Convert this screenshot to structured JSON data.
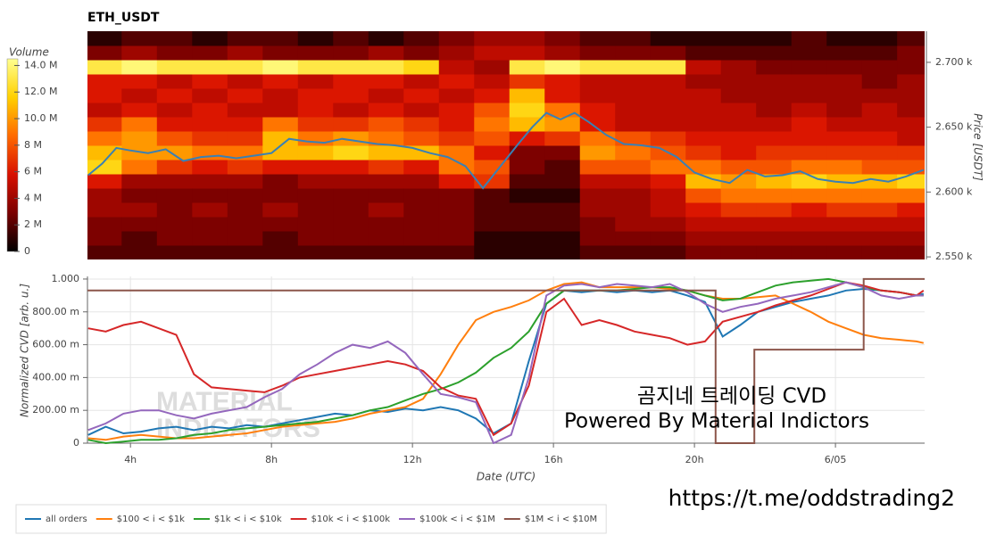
{
  "chart_data": [
    {
      "type": "heatmap",
      "title": "ETH_USDT",
      "ylabel": "Price [USDT]",
      "xlim": [
        2.78,
        26.53
      ],
      "ylim": [
        2548,
        2724
      ],
      "yticks": [
        {
          "value": 2550,
          "label": "2.550 k"
        },
        {
          "value": 2600,
          "label": "2.600 k"
        },
        {
          "value": 2650,
          "label": "2.650 k"
        },
        {
          "value": 2700,
          "label": "2.700 k"
        }
      ],
      "x_bins": [
        2.75,
        3.75,
        4.75,
        5.75,
        6.75,
        7.75,
        8.75,
        9.75,
        10.75,
        11.75,
        12.75,
        13.75,
        14.75,
        15.75,
        16.75,
        17.75,
        18.75,
        19.75,
        20.75,
        21.75,
        22.75,
        23.75,
        24.75,
        25.75,
        26.75
      ],
      "y_bins": [
        2548,
        2559,
        2570,
        2581,
        2592,
        2603,
        2614,
        2625,
        2636,
        2647,
        2658,
        2669,
        2680,
        2691,
        2702,
        2713,
        2724
      ],
      "z": [
        [
          2,
          2,
          2,
          2,
          2,
          2,
          2,
          2,
          2,
          2,
          2,
          1,
          1,
          1,
          2,
          2,
          2,
          3,
          3,
          3,
          3,
          3,
          3,
          3
        ],
        [
          3,
          2,
          3,
          3,
          3,
          2,
          3,
          3,
          3,
          3,
          3,
          1,
          1,
          1,
          3,
          3,
          3,
          4,
          4,
          4,
          4,
          4,
          4,
          4
        ],
        [
          3,
          3,
          3,
          3,
          3,
          3,
          3,
          3,
          3,
          3,
          3,
          2,
          2,
          2,
          3,
          4,
          4,
          5,
          5,
          5,
          5,
          5,
          5,
          5
        ],
        [
          4,
          4,
          3,
          4,
          3,
          4,
          3,
          3,
          4,
          3,
          3,
          2,
          2,
          2,
          4,
          4,
          5,
          6,
          7,
          7,
          6,
          7,
          7,
          6
        ],
        [
          4,
          3,
          3,
          3,
          3,
          3,
          3,
          3,
          3,
          3,
          3,
          2,
          1,
          1,
          4,
          4,
          5,
          8,
          9,
          9,
          9,
          9,
          9,
          9
        ],
        [
          6,
          4,
          4,
          4,
          4,
          3,
          4,
          4,
          4,
          4,
          6,
          7,
          2,
          2,
          5,
          5,
          6,
          11,
          10,
          11,
          12,
          11,
          11,
          12
        ],
        [
          12,
          9,
          7,
          6,
          7,
          6,
          6,
          6,
          7,
          6,
          9,
          8,
          3,
          2,
          8,
          8,
          9,
          9,
          8,
          8,
          9,
          9,
          8,
          8
        ],
        [
          11,
          10,
          10,
          9,
          9,
          11,
          11,
          12,
          11,
          11,
          9,
          6,
          3,
          3,
          10,
          9,
          8,
          7,
          6,
          7,
          7,
          7,
          7,
          7
        ],
        [
          9,
          10,
          8,
          7,
          7,
          11,
          9,
          10,
          9,
          8,
          7,
          8,
          6,
          7,
          9,
          8,
          7,
          6,
          6,
          6,
          6,
          6,
          6,
          5
        ],
        [
          7,
          9,
          6,
          6,
          6,
          9,
          7,
          7,
          8,
          7,
          6,
          9,
          11,
          10,
          6,
          5,
          5,
          5,
          5,
          5,
          6,
          5,
          5,
          5
        ],
        [
          5,
          6,
          5,
          6,
          5,
          5,
          6,
          5,
          6,
          5,
          6,
          8,
          12,
          9,
          6,
          5,
          5,
          5,
          5,
          4,
          5,
          4,
          5,
          4
        ],
        [
          6,
          5,
          6,
          5,
          6,
          5,
          6,
          6,
          5,
          6,
          5,
          6,
          11,
          6,
          5,
          5,
          5,
          5,
          4,
          4,
          4,
          4,
          4,
          4
        ],
        [
          6,
          6,
          5,
          6,
          5,
          6,
          5,
          6,
          6,
          5,
          6,
          5,
          7,
          6,
          5,
          5,
          5,
          4,
          4,
          4,
          4,
          4,
          3,
          4
        ],
        [
          13,
          14,
          13,
          13,
          13,
          14,
          13,
          13,
          13,
          12,
          5,
          4,
          13,
          14,
          13,
          13,
          13,
          5,
          4,
          3,
          3,
          3,
          3,
          3
        ],
        [
          3,
          4,
          3,
          3,
          4,
          3,
          3,
          3,
          4,
          3,
          4,
          5,
          5,
          4,
          3,
          3,
          3,
          2,
          2,
          2,
          2,
          2,
          2,
          3
        ],
        [
          1,
          2,
          2,
          1,
          2,
          2,
          1,
          2,
          1,
          2,
          3,
          4,
          4,
          3,
          2,
          2,
          1,
          1,
          1,
          1,
          2,
          1,
          1,
          2
        ]
      ],
      "colormap": [
        "#000000",
        "#7a0000",
        "#d81000",
        "#ff6a00",
        "#ffd000",
        "#ffff90"
      ],
      "colorbar": {
        "label": "Volume",
        "lim": [
          0,
          14.5
        ],
        "ticks": [
          0,
          {
            "value": 2,
            "label": "2 M"
          },
          {
            "value": 4,
            "label": "4 M"
          },
          {
            "value": 6,
            "label": "6 M"
          },
          {
            "value": 8,
            "label": "8 M"
          },
          {
            "value": 10,
            "label": "10.0 M"
          },
          {
            "value": 12,
            "label": "12.0 M"
          },
          {
            "value": 14,
            "label": "14.0 M"
          }
        ]
      },
      "line": {
        "color": "#3a80b4",
        "x": [
          2.8,
          3.2,
          3.6,
          4,
          4.5,
          5,
          5.5,
          6,
          6.5,
          7,
          7.5,
          8,
          8.5,
          9,
          9.5,
          10,
          10.5,
          11,
          11.5,
          12,
          12.5,
          13,
          13.5,
          14,
          14.5,
          15,
          15.4,
          15.8,
          16.2,
          16.6,
          17,
          17.5,
          18,
          18.5,
          19,
          19.5,
          20,
          20.5,
          21,
          21.5,
          22,
          22.5,
          23,
          23.5,
          24,
          24.5,
          25,
          25.5,
          26,
          26.5
        ],
        "values": [
          2613,
          2622,
          2634,
          2632,
          2630,
          2633,
          2624,
          2627,
          2628,
          2626,
          2628,
          2630,
          2641,
          2639,
          2638,
          2641,
          2639,
          2637,
          2636,
          2634,
          2630,
          2627,
          2620,
          2603,
          2620,
          2637,
          2650,
          2661,
          2656,
          2661,
          2654,
          2644,
          2637,
          2636,
          2634,
          2627,
          2615,
          2610,
          2607,
          2617,
          2612,
          2613,
          2616,
          2610,
          2608,
          2607,
          2610,
          2608,
          2612,
          2617
        ]
      }
    },
    {
      "type": "line",
      "xlabel": "Date (UTC)",
      "ylabel": "Normalized CVD [arb. u.]",
      "xlim": [
        2.78,
        26.53
      ],
      "ylim": [
        0,
        1.016
      ],
      "grid": true,
      "legend": "bottom-left",
      "xticks": [
        {
          "value": 4,
          "label": "4h"
        },
        {
          "value": 8,
          "label": "8h"
        },
        {
          "value": 12,
          "label": "12h"
        },
        {
          "value": 16,
          "label": "16h"
        },
        {
          "value": 20,
          "label": "20h"
        },
        {
          "value": 24,
          "label": "6/05"
        }
      ],
      "yticks": [
        0,
        {
          "value": 0.2,
          "label": "200.00 m"
        },
        {
          "value": 0.4,
          "label": "400.00 m"
        },
        {
          "value": 0.6,
          "label": "600.00 m"
        },
        {
          "value": 0.8,
          "label": "800.00 m"
        },
        {
          "value": 1,
          "label": "1.000"
        }
      ],
      "x": [
        2.8,
        3.3,
        3.8,
        4.3,
        4.8,
        5.3,
        5.8,
        6.3,
        6.8,
        7.3,
        7.8,
        8.3,
        8.8,
        9.3,
        9.8,
        10.3,
        10.8,
        11.3,
        11.8,
        12.3,
        12.8,
        13.3,
        13.8,
        14.3,
        14.8,
        15.3,
        15.8,
        16.3,
        16.8,
        17.3,
        17.8,
        18.3,
        18.8,
        19.3,
        19.8,
        20.3,
        20.8,
        21.3,
        21.8,
        22.3,
        22.8,
        23.3,
        23.8,
        24.3,
        24.8,
        25.3,
        25.8,
        26.3,
        26.5
      ],
      "series": [
        {
          "name": "all orders",
          "color": "#1f77b4",
          "values": [
            0.05,
            0.1,
            0.06,
            0.07,
            0.09,
            0.1,
            0.08,
            0.1,
            0.09,
            0.11,
            0.1,
            0.12,
            0.14,
            0.16,
            0.18,
            0.17,
            0.2,
            0.19,
            0.21,
            0.2,
            0.22,
            0.2,
            0.15,
            0.06,
            0.12,
            0.5,
            0.85,
            0.93,
            0.92,
            0.93,
            0.92,
            0.93,
            0.92,
            0.93,
            0.9,
            0.86,
            0.65,
            0.72,
            0.8,
            0.83,
            0.86,
            0.88,
            0.9,
            0.93,
            0.94,
            0.93,
            0.92,
            0.9,
            0.91
          ]
        },
        {
          "name": "$100 < i < $1k",
          "color": "#ff7f0e",
          "values": [
            0.03,
            0.02,
            0.04,
            0.05,
            0.04,
            0.03,
            0.03,
            0.04,
            0.05,
            0.06,
            0.08,
            0.1,
            0.11,
            0.12,
            0.13,
            0.15,
            0.18,
            0.2,
            0.22,
            0.27,
            0.42,
            0.6,
            0.75,
            0.8,
            0.83,
            0.87,
            0.93,
            0.97,
            0.98,
            0.95,
            0.95,
            0.95,
            0.95,
            0.94,
            0.93,
            0.9,
            0.88,
            0.88,
            0.89,
            0.9,
            0.85,
            0.8,
            0.74,
            0.7,
            0.66,
            0.64,
            0.63,
            0.62,
            0.61
          ]
        },
        {
          "name": "$1k < i < $10k",
          "color": "#2ca02c",
          "values": [
            0.02,
            0,
            0.01,
            0.02,
            0.02,
            0.03,
            0.05,
            0.06,
            0.08,
            0.09,
            0.1,
            0.11,
            0.12,
            0.13,
            0.15,
            0.17,
            0.2,
            0.22,
            0.26,
            0.3,
            0.33,
            0.37,
            0.43,
            0.52,
            0.58,
            0.68,
            0.85,
            0.93,
            0.93,
            0.93,
            0.93,
            0.94,
            0.95,
            0.95,
            0.93,
            0.9,
            0.87,
            0.88,
            0.92,
            0.96,
            0.98,
            0.99,
            1,
            0.98,
            0.95,
            0.93,
            0.92,
            0.9,
            0.9
          ]
        },
        {
          "name": "$10k < i < $100k",
          "color": "#d62728",
          "values": [
            0.7,
            0.68,
            0.72,
            0.74,
            0.7,
            0.66,
            0.42,
            0.34,
            0.33,
            0.32,
            0.31,
            0.35,
            0.4,
            0.42,
            0.44,
            0.46,
            0.48,
            0.5,
            0.48,
            0.44,
            0.34,
            0.29,
            0.27,
            0.05,
            0.12,
            0.35,
            0.8,
            0.88,
            0.72,
            0.75,
            0.72,
            0.68,
            0.66,
            0.64,
            0.6,
            0.62,
            0.74,
            0.77,
            0.8,
            0.84,
            0.87,
            0.9,
            0.94,
            0.98,
            0.96,
            0.93,
            0.92,
            0.9,
            0.93
          ]
        },
        {
          "name": "$100k < i < $1M",
          "color": "#9467bd",
          "values": [
            0.08,
            0.12,
            0.18,
            0.2,
            0.2,
            0.17,
            0.15,
            0.18,
            0.2,
            0.22,
            0.28,
            0.33,
            0.42,
            0.48,
            0.55,
            0.6,
            0.58,
            0.62,
            0.55,
            0.42,
            0.3,
            0.28,
            0.25,
            0,
            0.05,
            0.4,
            0.9,
            0.96,
            0.97,
            0.95,
            0.97,
            0.96,
            0.95,
            0.97,
            0.92,
            0.85,
            0.8,
            0.83,
            0.85,
            0.88,
            0.9,
            0.92,
            0.95,
            0.98,
            0.95,
            0.9,
            0.88,
            0.9,
            0.9
          ]
        },
        {
          "name": "$1M < i < $10M",
          "color": "#8c564b",
          "x": [
            2.78,
            20.6,
            20.6,
            21.7,
            21.7,
            24.8,
            24.8,
            26.53
          ],
          "values": [
            0.93,
            0.93,
            0,
            0,
            0.57,
            0.57,
            1,
            1
          ]
        }
      ],
      "annotations": [
        "곰지네 트레이딩 CVD",
        "Powered By Material Indictors"
      ],
      "watermark": [
        "MATERIAL",
        "INDICATORS"
      ]
    }
  ],
  "footer_link": "https://t.me/oddstrading2"
}
